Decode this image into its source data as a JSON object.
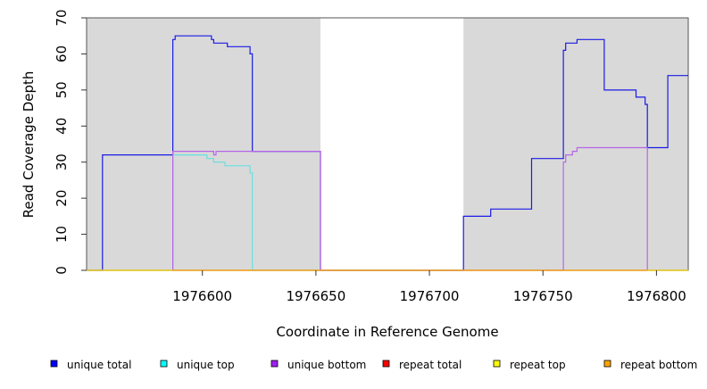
{
  "chart_data": {
    "type": "line",
    "title": "",
    "xlabel": "Coordinate in Reference Genome",
    "ylabel": "Read Coverage Depth",
    "xlim": [
      1976549,
      1976814
    ],
    "ylim": [
      0,
      70
    ],
    "x_ticks": [
      1976600,
      1976650,
      1976700,
      1976750,
      1976800
    ],
    "y_ticks": [
      0,
      10,
      20,
      30,
      40,
      50,
      60,
      70
    ],
    "grid": false,
    "shaded_regions": [
      [
        1976549,
        1976652
      ],
      [
        1976715,
        1976814
      ]
    ],
    "shade_color": "#d9d9d9",
    "legend_position": "bottom",
    "series": [
      {
        "name": "unique total",
        "color": "#0000ff",
        "line_color": "#1a1ae6",
        "points": [
          [
            1976549,
            0
          ],
          [
            1976556,
            0
          ],
          [
            1976556,
            32
          ],
          [
            1976587,
            32
          ],
          [
            1976587,
            64
          ],
          [
            1976588,
            64
          ],
          [
            1976588,
            65
          ],
          [
            1976604,
            65
          ],
          [
            1976604,
            64
          ],
          [
            1976605,
            64
          ],
          [
            1976605,
            63
          ],
          [
            1976611,
            63
          ],
          [
            1976611,
            62
          ],
          [
            1976621,
            62
          ],
          [
            1976621,
            60
          ],
          [
            1976622,
            60
          ],
          [
            1976622,
            33
          ],
          [
            1976652,
            33
          ],
          [
            1976652,
            0
          ],
          [
            1976715,
            0
          ],
          [
            1976715,
            15
          ],
          [
            1976727,
            15
          ],
          [
            1976727,
            17
          ],
          [
            1976745,
            17
          ],
          [
            1976745,
            31
          ],
          [
            1976759,
            31
          ],
          [
            1976759,
            61
          ],
          [
            1976760,
            61
          ],
          [
            1976760,
            63
          ],
          [
            1976765,
            63
          ],
          [
            1976765,
            64
          ],
          [
            1976777,
            64
          ],
          [
            1976777,
            50
          ],
          [
            1976791,
            50
          ],
          [
            1976791,
            48
          ],
          [
            1976795,
            48
          ],
          [
            1976795,
            46
          ],
          [
            1976796,
            46
          ],
          [
            1976796,
            34
          ],
          [
            1976805,
            34
          ],
          [
            1976805,
            54
          ],
          [
            1976814,
            54
          ]
        ]
      },
      {
        "name": "unique top",
        "color": "#00ffff",
        "line_color": "#66e0e0",
        "points": [
          [
            1976587,
            0
          ],
          [
            1976587,
            32
          ],
          [
            1976602,
            32
          ],
          [
            1976602,
            31
          ],
          [
            1976605,
            31
          ],
          [
            1976605,
            30
          ],
          [
            1976610,
            30
          ],
          [
            1976610,
            29
          ],
          [
            1976621,
            29
          ],
          [
            1976621,
            27
          ],
          [
            1976622,
            27
          ],
          [
            1976622,
            0
          ],
          [
            1976652,
            0
          ]
        ]
      },
      {
        "name": "unique bottom",
        "color": "#a020f0",
        "line_color": "#b565e8",
        "points": [
          [
            1976549,
            0
          ],
          [
            1976587,
            0
          ],
          [
            1976587,
            33
          ],
          [
            1976605,
            33
          ],
          [
            1976605,
            32
          ],
          [
            1976606,
            32
          ],
          [
            1976606,
            33
          ],
          [
            1976652,
            33
          ],
          [
            1976652,
            0
          ],
          [
            1976759,
            0
          ],
          [
            1976759,
            30
          ],
          [
            1976760,
            30
          ],
          [
            1976760,
            32
          ],
          [
            1976763,
            32
          ],
          [
            1976763,
            33
          ],
          [
            1976765,
            33
          ],
          [
            1976765,
            34
          ],
          [
            1976796,
            34
          ],
          [
            1976796,
            0
          ],
          [
            1976814,
            0
          ]
        ]
      },
      {
        "name": "repeat total",
        "color": "#ff0000",
        "line_color": "#e0403a",
        "points": [
          [
            1976549,
            0
          ],
          [
            1976814,
            0
          ]
        ]
      },
      {
        "name": "repeat top",
        "color": "#ffff00",
        "line_color": "#e6e600",
        "points": [
          [
            1976549,
            0
          ],
          [
            1976814,
            0
          ]
        ]
      },
      {
        "name": "repeat bottom",
        "color": "#ffa500",
        "line_color": "#f0a020",
        "points": [
          [
            1976587,
            0
          ],
          [
            1976622,
            0
          ],
          [
            1976760,
            0
          ],
          [
            1976796,
            0
          ]
        ]
      }
    ]
  }
}
